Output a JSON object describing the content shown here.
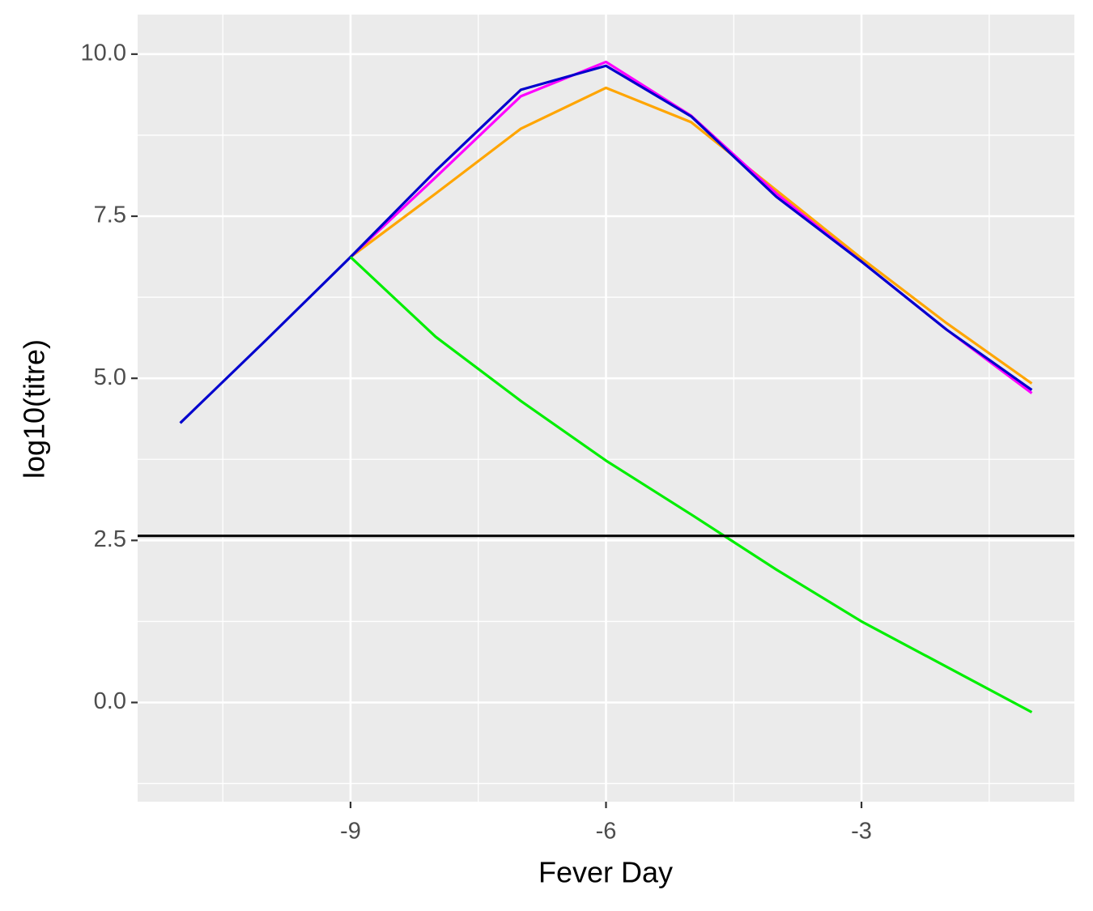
{
  "chart_data": {
    "type": "line",
    "x_label": "Fever Day",
    "y_label": "log10(titre)",
    "x": [
      -11,
      -10,
      -9,
      -8,
      -7,
      -6,
      -5,
      -4,
      -3,
      -2,
      -1
    ],
    "series": [
      {
        "color": "#ffa500",
        "values": [
          null,
          null,
          6.87,
          7.85,
          8.85,
          9.48,
          8.95,
          7.9,
          6.85,
          5.85,
          4.92
        ]
      },
      {
        "color": "#ff00ff",
        "values": [
          null,
          null,
          6.87,
          8.1,
          9.35,
          9.88,
          9.05,
          7.85,
          6.8,
          5.75,
          4.77
        ]
      },
      {
        "color": "#0000cd",
        "values": [
          4.31,
          5.58,
          6.87,
          8.2,
          9.45,
          9.82,
          9.04,
          7.8,
          6.8,
          5.75,
          4.82
        ]
      },
      {
        "color": "#00ee00",
        "values": [
          null,
          null,
          6.87,
          5.64,
          4.65,
          3.73,
          2.9,
          2.05,
          1.25,
          0.55,
          -0.15
        ]
      }
    ],
    "hline": {
      "value": 2.57,
      "color": "#000000"
    },
    "xlim": [
      -11.5,
      -0.5
    ],
    "ylim": [
      -1.53,
      10.61
    ],
    "xticks": [
      -9,
      -6,
      -3
    ],
    "yticks": [
      {
        "value": 0,
        "label": "0.0"
      },
      2.5,
      {
        "value": 5,
        "label": "5.0"
      },
      7.5,
      {
        "value": 10,
        "label": "10.0"
      }
    ],
    "minor_xticks": [
      -10.5,
      -7.5,
      -4.5,
      -1.5
    ],
    "minor_yticks": [
      -1.25,
      1.25,
      3.75,
      6.25,
      8.75
    ],
    "grid": true
  }
}
